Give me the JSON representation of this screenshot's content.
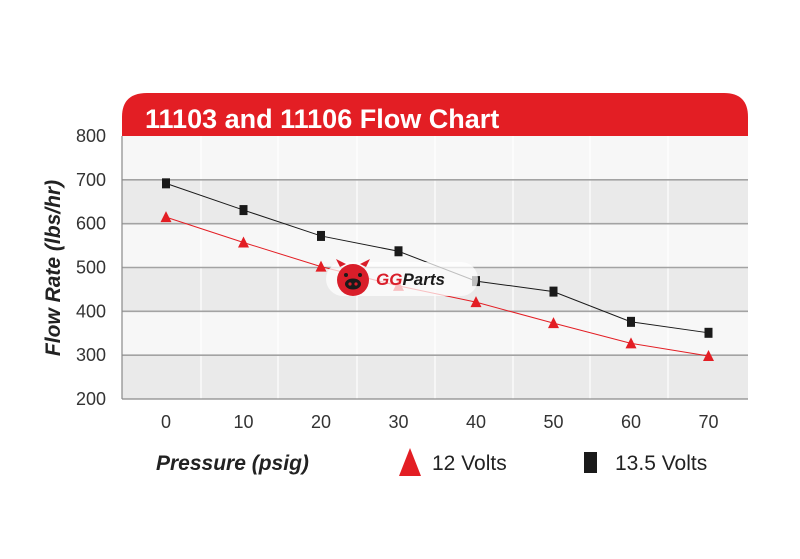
{
  "watermark": {
    "brand_a": "GG",
    "brand_b": "Parts"
  },
  "chart_data": {
    "type": "line",
    "title": "11103 and 11106 Flow Chart",
    "xlabel": "Pressure (psig)",
    "ylabel": "Flow Rate (lbs/hr)",
    "x": [
      0,
      10,
      20,
      30,
      40,
      50,
      60,
      70
    ],
    "x_ticks": [
      "0",
      "10",
      "20",
      "30",
      "40",
      "50",
      "60",
      "70"
    ],
    "y_ticks": [
      "200",
      "300",
      "400",
      "500",
      "600",
      "700",
      "800"
    ],
    "ylim": [
      200,
      800
    ],
    "grid": true,
    "legend_position": "bottom",
    "series": [
      {
        "name": "12 Volts",
        "marker": "triangle",
        "color": "#e31e24",
        "values": [
          615,
          557,
          502,
          458,
          421,
          373,
          327,
          298
        ]
      },
      {
        "name": "13.5 Volts",
        "marker": "square",
        "color": "#1a1a1a",
        "values": [
          692,
          631,
          572,
          537,
          469,
          445,
          376,
          351
        ]
      }
    ]
  }
}
